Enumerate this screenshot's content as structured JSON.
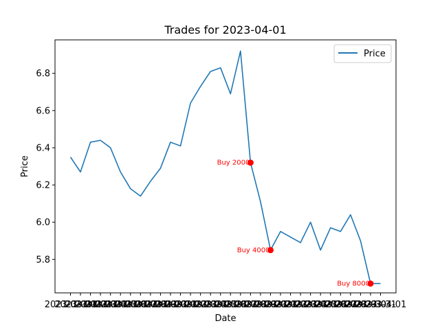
{
  "chart_data": {
    "type": "line",
    "title": "Trades for 2023-04-01",
    "xlabel": "Date",
    "ylabel": "Price",
    "ylim": [
      5.62,
      6.98
    ],
    "yticks": [
      5.8,
      6.0,
      6.2,
      6.4,
      6.6,
      6.8
    ],
    "ytick_labels": [
      "5.8",
      "6.0",
      "6.2",
      "6.4",
      "6.6",
      "6.8"
    ],
    "x": [
      "2023-03-01",
      "2023-03-02",
      "2023-03-03",
      "2023-03-04",
      "2023-03-05",
      "2023-03-06",
      "2023-03-07",
      "2023-03-08",
      "2023-03-09",
      "2023-03-10",
      "2023-03-11",
      "2023-03-12",
      "2023-03-13",
      "2023-03-14",
      "2023-03-15",
      "2023-03-16",
      "2023-03-17",
      "2023-03-18",
      "2023-03-19",
      "2023-03-20",
      "2023-03-21",
      "2023-03-22",
      "2023-03-23",
      "2023-03-24",
      "2023-03-25",
      "2023-03-26",
      "2023-03-27",
      "2023-03-28",
      "2023-03-29",
      "2023-03-30",
      "2023-03-31",
      "2023-04-01"
    ],
    "series": [
      {
        "name": "Price",
        "color": "#1f77b4",
        "values": [
          6.35,
          6.27,
          6.43,
          6.44,
          6.4,
          6.27,
          6.18,
          6.14,
          6.22,
          6.29,
          6.43,
          6.41,
          6.64,
          6.73,
          6.81,
          6.83,
          6.69,
          6.92,
          6.32,
          6.11,
          5.85,
          5.95,
          5.92,
          5.89,
          6.0,
          5.85,
          5.97,
          5.95,
          6.04,
          5.9,
          5.67,
          5.67
        ]
      }
    ],
    "annotations": [
      {
        "index": 18,
        "text": "Buy 2000",
        "color": "#ff0000"
      },
      {
        "index": 20,
        "text": "Buy 4000",
        "color": "#ff0000"
      },
      {
        "index": 30,
        "text": "Buy 8000",
        "color": "#ff0000"
      }
    ],
    "legend": {
      "position": "top-right",
      "entries": [
        "Price"
      ]
    },
    "grid": false
  }
}
